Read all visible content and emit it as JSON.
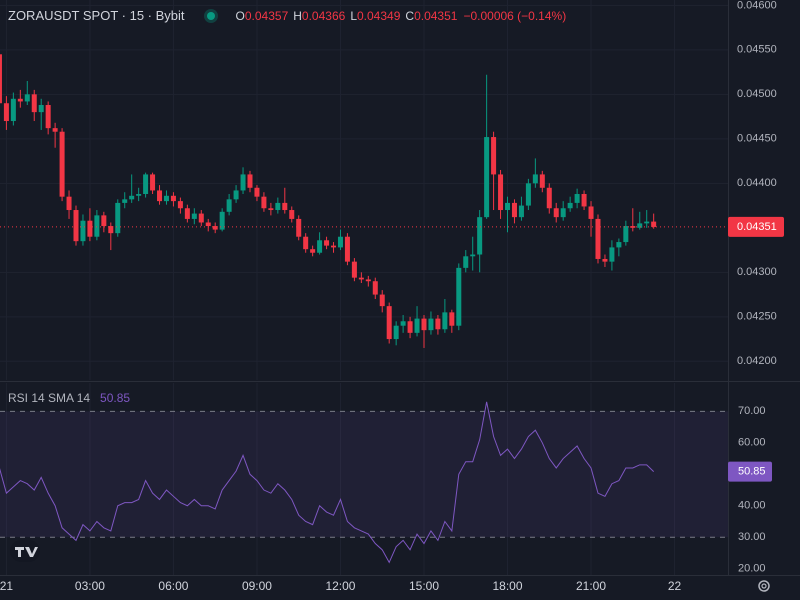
{
  "header": {
    "symbol": "ZORAUSDT SPOT · 15 · Bybit",
    "ohlc_keys": [
      "O",
      "H",
      "L",
      "C"
    ],
    "change": "−0.00006 (−0.14%)"
  },
  "chart_data": [
    {
      "type": "candlestick",
      "x": [
        -0.25,
        0,
        0.25,
        0.5,
        0.75,
        1,
        1.25,
        1.5,
        1.75,
        2,
        2.25,
        2.5,
        2.75,
        3,
        3.25,
        3.5,
        3.75,
        4,
        4.25,
        4.5,
        4.75,
        5,
        5.25,
        5.5,
        5.75,
        6,
        6.25,
        6.5,
        6.75,
        7,
        7.25,
        7.5,
        7.75,
        8,
        8.25,
        8.5,
        8.75,
        9,
        9.25,
        9.5,
        9.75,
        10,
        10.25,
        10.5,
        10.75,
        11,
        11.25,
        11.5,
        11.75,
        12,
        12.25,
        12.5,
        12.75,
        13,
        13.25,
        13.5,
        13.75,
        14,
        14.25,
        14.5,
        14.75,
        15,
        15.25,
        15.5,
        15.75,
        16,
        16.25,
        16.5,
        16.75,
        17,
        17.25,
        17.5,
        17.75,
        18,
        18.25,
        18.5,
        18.75,
        19,
        19.25,
        19.5,
        19.75,
        20,
        20.25,
        20.5,
        20.75,
        21,
        21.25,
        21.5,
        21.75,
        22,
        22.25,
        22.5,
        22.75,
        23,
        23.25
      ],
      "open": [
        0.04545,
        0.0449,
        0.0447,
        0.04495,
        0.04492,
        0.045,
        0.0448,
        0.04488,
        0.04462,
        0.04458,
        0.04385,
        0.0437,
        0.04335,
        0.04358,
        0.0434,
        0.04364,
        0.04352,
        0.04344,
        0.04378,
        0.04382,
        0.04386,
        0.04388,
        0.0441,
        0.04392,
        0.0438,
        0.04386,
        0.0438,
        0.04372,
        0.0436,
        0.04366,
        0.04356,
        0.04352,
        0.04348,
        0.04368,
        0.04382,
        0.04392,
        0.0441,
        0.04395,
        0.04385,
        0.04372,
        0.0437,
        0.04378,
        0.0437,
        0.0436,
        0.0434,
        0.04326,
        0.04322,
        0.04336,
        0.0433,
        0.04328,
        0.0434,
        0.04312,
        0.04294,
        0.04292,
        0.0429,
        0.04275,
        0.04262,
        0.04225,
        0.0424,
        0.04245,
        0.04232,
        0.04248,
        0.04235,
        0.04248,
        0.04236,
        0.04255,
        0.0424,
        0.04305,
        0.04318,
        0.0432,
        0.04362,
        0.04452,
        0.0441,
        0.0437,
        0.04378,
        0.04362,
        0.04375,
        0.044,
        0.0441,
        0.04395,
        0.04372,
        0.04362,
        0.04372,
        0.04378,
        0.04388,
        0.04374,
        0.0436,
        0.04315,
        0.04312,
        0.04328,
        0.04334,
        0.04352,
        0.0435,
        0.04355,
        0.04357
      ],
      "high": [
        0.04552,
        0.04498,
        0.04502,
        0.04505,
        0.04515,
        0.04505,
        0.04495,
        0.04492,
        0.04468,
        0.04462,
        0.04392,
        0.04375,
        0.04365,
        0.04372,
        0.0437,
        0.04368,
        0.04356,
        0.04382,
        0.0439,
        0.0441,
        0.04395,
        0.04412,
        0.04412,
        0.04398,
        0.04392,
        0.0439,
        0.04384,
        0.04376,
        0.04372,
        0.0437,
        0.0436,
        0.04356,
        0.04372,
        0.04388,
        0.04398,
        0.04418,
        0.04414,
        0.04398,
        0.0439,
        0.04378,
        0.04384,
        0.04395,
        0.04374,
        0.04364,
        0.04344,
        0.0433,
        0.04345,
        0.0434,
        0.04334,
        0.04348,
        0.04344,
        0.04316,
        0.043,
        0.04296,
        0.04294,
        0.0428,
        0.04266,
        0.04245,
        0.04252,
        0.0425,
        0.04262,
        0.04252,
        0.04256,
        0.04252,
        0.0427,
        0.04258,
        0.0431,
        0.04325,
        0.0434,
        0.0437,
        0.04522,
        0.04458,
        0.04415,
        0.04385,
        0.04382,
        0.04385,
        0.04405,
        0.04428,
        0.04414,
        0.044,
        0.04378,
        0.0438,
        0.04385,
        0.04394,
        0.04392,
        0.0438,
        0.04365,
        0.0432,
        0.04336,
        0.04338,
        0.04358,
        0.04372,
        0.04368,
        0.0437,
        0.04366
      ],
      "low": [
        0.04485,
        0.0446,
        0.04465,
        0.04485,
        0.04488,
        0.0447,
        0.0446,
        0.04455,
        0.0444,
        0.0438,
        0.0436,
        0.0433,
        0.0433,
        0.04335,
        0.04336,
        0.04345,
        0.04325,
        0.0434,
        0.04372,
        0.04378,
        0.0438,
        0.04384,
        0.04388,
        0.04376,
        0.04376,
        0.04374,
        0.04366,
        0.04356,
        0.04354,
        0.04352,
        0.04346,
        0.04344,
        0.04346,
        0.04364,
        0.04378,
        0.04388,
        0.0439,
        0.0438,
        0.04368,
        0.04364,
        0.04366,
        0.04366,
        0.04356,
        0.04336,
        0.04322,
        0.04318,
        0.0432,
        0.04326,
        0.04322,
        0.04325,
        0.04308,
        0.0429,
        0.04288,
        0.04284,
        0.0427,
        0.04255,
        0.0422,
        0.04218,
        0.04232,
        0.04226,
        0.04228,
        0.04215,
        0.0423,
        0.0423,
        0.04232,
        0.04232,
        0.04235,
        0.043,
        0.04302,
        0.043,
        0.0436,
        0.0437,
        0.0436,
        0.04345,
        0.04355,
        0.04358,
        0.0437,
        0.04395,
        0.0439,
        0.04366,
        0.04356,
        0.04358,
        0.04368,
        0.04372,
        0.0437,
        0.0434,
        0.0431,
        0.04306,
        0.04302,
        0.04318,
        0.0433,
        0.04346,
        0.04348,
        0.0435,
        0.04349
      ],
      "close": [
        0.0449,
        0.0447,
        0.04495,
        0.04492,
        0.045,
        0.0448,
        0.04488,
        0.04462,
        0.04458,
        0.04385,
        0.0437,
        0.04335,
        0.04358,
        0.0434,
        0.04364,
        0.04352,
        0.04344,
        0.04378,
        0.04382,
        0.04386,
        0.04388,
        0.0441,
        0.04392,
        0.0438,
        0.04386,
        0.0438,
        0.04372,
        0.0436,
        0.04366,
        0.04356,
        0.04352,
        0.04348,
        0.04368,
        0.04382,
        0.04392,
        0.0441,
        0.04395,
        0.04385,
        0.04372,
        0.0437,
        0.04378,
        0.0437,
        0.0436,
        0.0434,
        0.04326,
        0.04322,
        0.04336,
        0.0433,
        0.04328,
        0.0434,
        0.04312,
        0.04294,
        0.04292,
        0.0429,
        0.04275,
        0.04262,
        0.04225,
        0.0424,
        0.04245,
        0.04232,
        0.04248,
        0.04235,
        0.04248,
        0.04236,
        0.04255,
        0.0424,
        0.04305,
        0.04318,
        0.0432,
        0.04362,
        0.04452,
        0.0441,
        0.0437,
        0.04378,
        0.04362,
        0.04375,
        0.044,
        0.0441,
        0.04395,
        0.04372,
        0.04362,
        0.04372,
        0.04378,
        0.04388,
        0.04374,
        0.0436,
        0.04315,
        0.04312,
        0.04328,
        0.04334,
        0.04352,
        0.0435,
        0.04355,
        0.04357,
        0.04351
      ],
      "up_color": "#089981",
      "down_color": "#f23645",
      "xlim": [
        -0.23,
        25.92
      ],
      "ylim": [
        0.04179,
        0.04606
      ],
      "yticks": [
        {
          "value": 0.042,
          "label": "0.04200"
        },
        {
          "value": 0.0425,
          "label": "0.04250"
        },
        {
          "value": 0.043,
          "label": "0.04300"
        },
        {
          "value": 0.044,
          "label": "0.04400"
        },
        {
          "value": 0.0445,
          "label": "0.04450"
        },
        {
          "value": 0.045,
          "label": "0.04500"
        },
        {
          "value": 0.0455,
          "label": "0.04550"
        },
        {
          "value": 0.046,
          "label": "0.04600"
        }
      ],
      "grid": true
    },
    {
      "type": "line",
      "title": "RSI 14 SMA 14",
      "x": [
        -0.25,
        0,
        0.25,
        0.5,
        0.75,
        1,
        1.25,
        1.5,
        1.75,
        2,
        2.25,
        2.5,
        2.75,
        3,
        3.25,
        3.5,
        3.75,
        4,
        4.25,
        4.5,
        4.75,
        5,
        5.25,
        5.5,
        5.75,
        6,
        6.25,
        6.5,
        6.75,
        7,
        7.25,
        7.5,
        7.75,
        8,
        8.25,
        8.5,
        8.75,
        9,
        9.25,
        9.5,
        9.75,
        10,
        10.25,
        10.5,
        10.75,
        11,
        11.25,
        11.5,
        11.75,
        12,
        12.25,
        12.5,
        12.75,
        13,
        13.25,
        13.5,
        13.75,
        14,
        14.25,
        14.5,
        14.75,
        15,
        15.25,
        15.5,
        15.75,
        16,
        16.25,
        16.5,
        16.75,
        17,
        17.25,
        17.5,
        17.75,
        18,
        18.25,
        18.5,
        18.75,
        19,
        19.25,
        19.5,
        19.75,
        20,
        20.25,
        20.5,
        20.75,
        21,
        21.25,
        21.5,
        21.75,
        22,
        22.25,
        22.5,
        22.75,
        23,
        23.25
      ],
      "values": [
        52,
        44,
        46,
        48,
        47,
        45,
        49,
        44,
        40,
        33,
        31,
        29,
        34,
        32,
        35,
        33,
        32,
        40,
        41,
        41,
        42,
        48,
        44,
        42,
        45,
        43,
        41,
        40,
        42,
        40,
        40,
        39,
        45,
        48,
        51,
        56,
        50,
        48,
        45,
        44,
        47,
        45,
        42,
        37,
        35,
        34,
        40,
        38,
        37,
        42,
        35,
        33,
        32,
        31,
        28,
        26,
        22,
        27,
        29,
        26,
        31,
        28,
        32,
        29,
        35,
        32,
        50,
        54,
        54,
        61,
        73,
        62,
        56,
        58,
        55,
        58,
        62,
        64,
        60,
        55,
        52,
        55,
        57,
        59,
        55,
        52,
        44,
        43,
        47,
        48,
        52,
        52,
        53,
        53,
        50.85
      ],
      "color": "#7e57c2",
      "band": [
        30,
        70
      ],
      "xlim": [
        -0.23,
        25.92
      ],
      "ylim": [
        18,
        79
      ],
      "yticks": [
        {
          "value": 20,
          "label": "20.00"
        },
        {
          "value": 30,
          "label": "30.00"
        },
        {
          "value": 40,
          "label": "40.00"
        },
        {
          "value": 60,
          "label": "60.00"
        },
        {
          "value": 70,
          "label": "70.00"
        }
      ],
      "xticks": [
        {
          "value": 0,
          "label": "21"
        },
        {
          "value": 3,
          "label": "03:00"
        },
        {
          "value": 6,
          "label": "06:00"
        },
        {
          "value": 9,
          "label": "09:00"
        },
        {
          "value": 12,
          "label": "12:00"
        },
        {
          "value": 15,
          "label": "15:00"
        },
        {
          "value": 18,
          "label": "18:00"
        },
        {
          "value": 21,
          "label": "21:00"
        },
        {
          "value": 24,
          "label": "22"
        }
      ]
    }
  ]
}
